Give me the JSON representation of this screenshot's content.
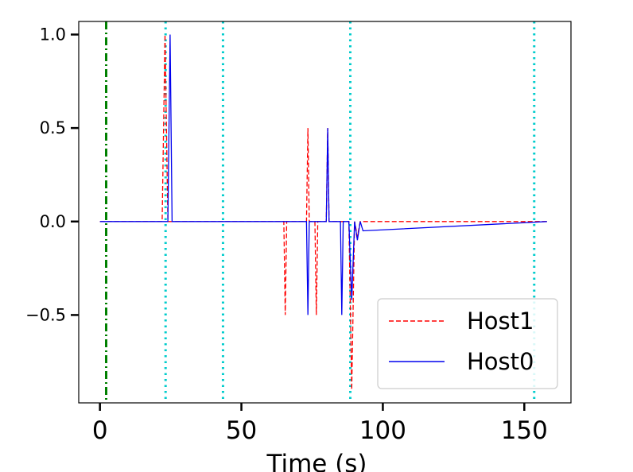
{
  "chart_data": {
    "type": "line",
    "xlabel": "Time (s)",
    "ylabel": "",
    "xlim": [
      -7.5,
      166.5
    ],
    "ylim": [
      -0.97,
      1.07
    ],
    "xticks": [
      0,
      50,
      100,
      150
    ],
    "xtick_labels": [
      "0",
      "50",
      "100",
      "150"
    ],
    "yticks": [
      -0.5,
      0.0,
      0.5,
      1.0
    ],
    "ytick_labels": [
      "−0.5",
      "0.0",
      "0.5",
      "1.0"
    ],
    "grid": false,
    "legend_position": "lower-right",
    "series": [
      {
        "name": "Host1",
        "color": "#ff0000",
        "style": "dashed",
        "x": [
          0,
          22,
          23,
          24,
          65,
          65.5,
          66,
          73,
          73.5,
          74,
          76,
          76.5,
          77,
          80,
          80.5,
          81,
          88,
          89,
          90,
          91,
          92,
          158
        ],
        "y": [
          0,
          0,
          1.0,
          0,
          0,
          -0.5,
          0,
          0,
          0.5,
          0,
          0,
          -0.5,
          0,
          0,
          0.5,
          0,
          0,
          -0.9,
          0,
          -0.08,
          0,
          0
        ]
      },
      {
        "name": "Host0",
        "color": "#0000ee",
        "style": "solid",
        "x": [
          0,
          24,
          24.8,
          25.5,
          73,
          73.5,
          74,
          80,
          80.5,
          81,
          85,
          85.5,
          86,
          88,
          89,
          90,
          91,
          92,
          93,
          158
        ],
        "y": [
          0,
          0,
          1.0,
          0,
          0,
          -0.5,
          0,
          0,
          0.5,
          0,
          0,
          -0.5,
          0,
          0,
          -0.42,
          0,
          -0.1,
          0,
          -0.05,
          0
        ]
      }
    ],
    "vlines": [
      {
        "x": 2.2,
        "color": "#008000",
        "style": "dashdot"
      },
      {
        "x": 23.2,
        "color": "#00cccc",
        "style": "dotted"
      },
      {
        "x": 43.5,
        "color": "#00cccc",
        "style": "dotted"
      },
      {
        "x": 88.5,
        "color": "#00cccc",
        "style": "dotted"
      },
      {
        "x": 153.5,
        "color": "#00cccc",
        "style": "dotted"
      }
    ]
  }
}
